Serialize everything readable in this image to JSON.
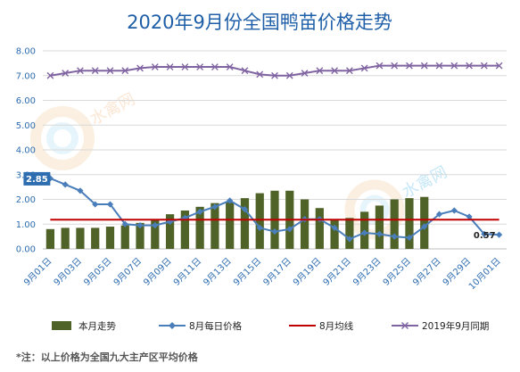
{
  "chart_data": {
    "type": "bar",
    "title": "2020年9月份全国鸭苗价格走势",
    "ylim": [
      0,
      8
    ],
    "yticks": [
      "0.00",
      "1.00",
      "2.00",
      "3.00",
      "4.00",
      "5.00",
      "6.00",
      "7.00",
      "8.00"
    ],
    "grid": true,
    "legend_position": "bottom",
    "categories": [
      "9月01日",
      "9月02日",
      "9月03日",
      "9月04日",
      "9月05日",
      "9月06日",
      "9月07日",
      "9月08日",
      "9月09日",
      "9月10日",
      "9月11日",
      "9月12日",
      "9月13日",
      "9月14日",
      "9月15日",
      "9月16日",
      "9月17日",
      "9月18日",
      "9月19日",
      "9月20日",
      "9月21日",
      "9月22日",
      "9月23日",
      "9月24日",
      "9月25日",
      "9月26日",
      "9月27日",
      "9月28日",
      "9月29日",
      "9月30日",
      "10月01日"
    ],
    "xtick_labels": [
      "9月01日",
      "9月03日",
      "9月05日",
      "9月07日",
      "9月09日",
      "9月11日",
      "9月13日",
      "9月15日",
      "9月17日",
      "9月19日",
      "9月21日",
      "9月23日",
      "9月25日",
      "9月27日",
      "9月29日",
      "10月01日"
    ],
    "series": [
      {
        "name": "本月走势",
        "kind": "bar",
        "color": "#4f6228",
        "values": [
          0.8,
          0.85,
          0.85,
          0.85,
          0.9,
          0.95,
          1.05,
          1.2,
          1.4,
          1.55,
          1.7,
          1.85,
          1.9,
          2.05,
          2.25,
          2.35,
          2.35,
          2.0,
          1.65,
          1.2,
          1.25,
          1.5,
          1.75,
          2.0,
          2.05,
          2.1,
          null,
          null,
          null,
          null,
          null
        ]
      },
      {
        "name": "8月每日价格",
        "kind": "line",
        "color": "#4a7ebb",
        "marker": "diamond",
        "values": [
          2.85,
          2.6,
          2.35,
          1.8,
          1.8,
          1.0,
          0.95,
          0.95,
          1.1,
          1.25,
          1.5,
          1.7,
          1.95,
          1.6,
          0.85,
          0.7,
          0.8,
          1.2,
          1.2,
          0.85,
          0.4,
          0.65,
          0.6,
          0.5,
          0.45,
          0.9,
          1.4,
          1.55,
          1.3,
          0.6,
          0.57
        ]
      },
      {
        "name": "8月均线",
        "kind": "line",
        "color": "#c00000",
        "values": [
          1.18,
          1.18,
          1.18,
          1.18,
          1.18,
          1.18,
          1.18,
          1.18,
          1.18,
          1.18,
          1.18,
          1.18,
          1.18,
          1.18,
          1.18,
          1.18,
          1.18,
          1.18,
          1.18,
          1.18,
          1.18,
          1.18,
          1.18,
          1.18,
          1.18,
          1.18,
          1.18,
          1.18,
          1.18,
          1.18,
          1.18
        ]
      },
      {
        "name": "2019年9月同期",
        "kind": "line",
        "color": "#8064a2",
        "marker": "x",
        "values": [
          7.0,
          7.1,
          7.2,
          7.2,
          7.2,
          7.2,
          7.3,
          7.35,
          7.35,
          7.35,
          7.35,
          7.35,
          7.35,
          7.2,
          7.05,
          7.0,
          7.0,
          7.1,
          7.2,
          7.2,
          7.2,
          7.3,
          7.4,
          7.4,
          7.4,
          7.4,
          7.4,
          7.4,
          7.4,
          7.4,
          7.4
        ]
      }
    ],
    "annotations": [
      {
        "text": "2.85",
        "series": "8月每日价格",
        "at": "9月01日"
      },
      {
        "text": "0.57",
        "series": "8月每日价格",
        "at": "10月01日"
      }
    ],
    "note": "*注：以上价格为全国九大主产区平均价格"
  },
  "watermark": {
    "text": "水禽网",
    "subtext": "SHUIQINWANG"
  }
}
